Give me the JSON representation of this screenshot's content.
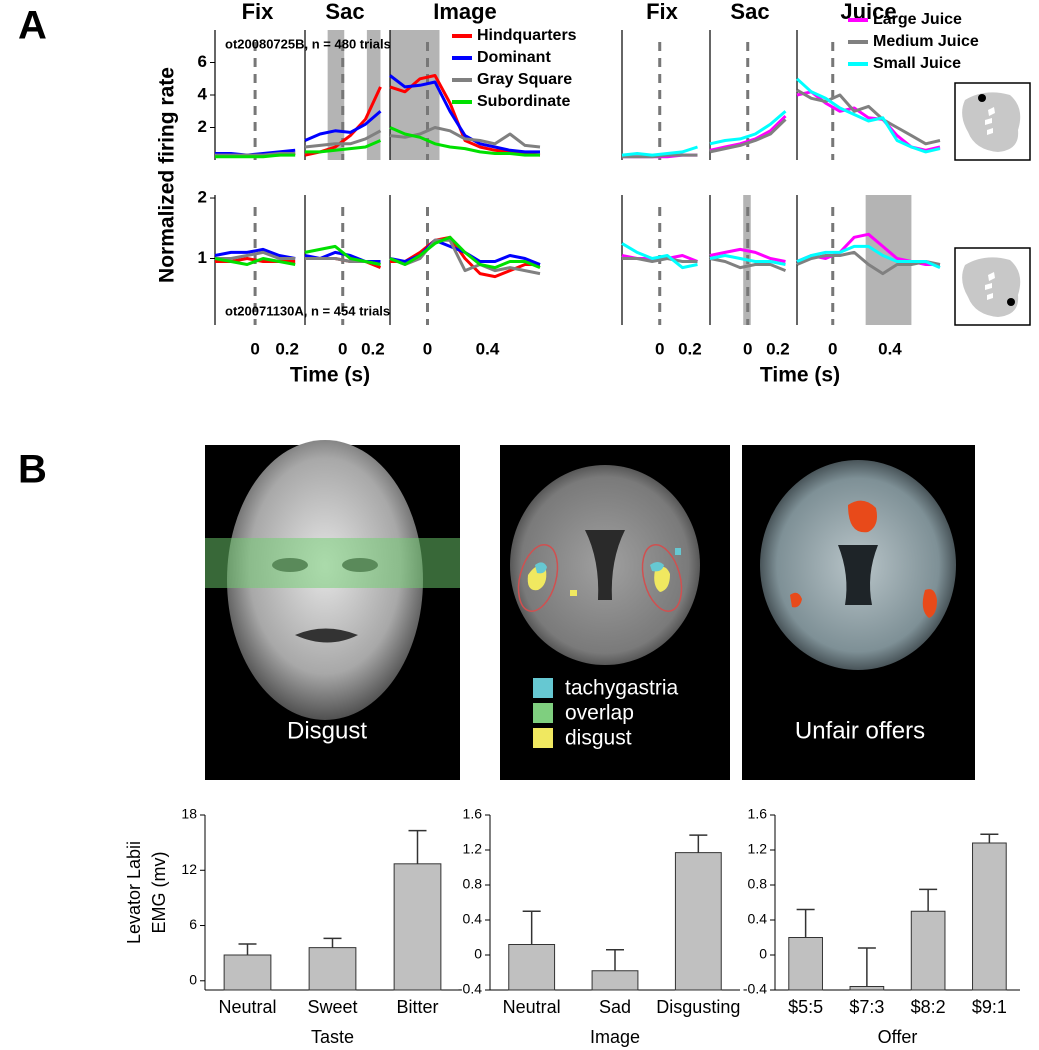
{
  "panel_labels": [
    "A",
    "B"
  ],
  "images": [
    {
      "caption": "Disgust"
    },
    {
      "legend": [
        {
          "label": "tachygastria",
          "color": "#66c8d2"
        },
        {
          "label": "overlap",
          "color": "#7fcf7f"
        },
        {
          "label": "disgust",
          "color": "#f0e860"
        }
      ]
    },
    {
      "caption": "Unfair offers"
    }
  ],
  "chart_data": [
    {
      "type": "line",
      "ylabel": "Normalized firing rate",
      "xlabel": "Time (s)",
      "segment_titles": [
        "Fix",
        "Sac",
        "Image"
      ],
      "series": [
        {
          "name": "Hindquarters",
          "color": "#ff0000"
        },
        {
          "name": "Dominant",
          "color": "#0000ff"
        },
        {
          "name": "Gray Square",
          "color": "#808080"
        },
        {
          "name": "Subordinate",
          "color": "#00e000"
        }
      ],
      "rows": [
        {
          "annotation": "ot20080725B, n = 480 trials",
          "ylim": [
            0,
            8
          ],
          "yticks": [
            2,
            4,
            6
          ],
          "segments": [
            {
              "xlim": [
                -0.25,
                0.28
              ],
              "event": 0,
              "x": [
                -0.25,
                -0.15,
                -0.05,
                0.05,
                0.15,
                0.25
              ],
              "values": [
                [
                  0.3,
                  0.3,
                  0.3,
                  0.3,
                  0.3,
                  0.4
                ],
                [
                  0.4,
                  0.4,
                  0.3,
                  0.4,
                  0.5,
                  0.6
                ],
                [
                  0.3,
                  0.3,
                  0.3,
                  0.3,
                  0.4,
                  0.4
                ],
                [
                  0.2,
                  0.2,
                  0.2,
                  0.2,
                  0.3,
                  0.3
                ]
              ]
            },
            {
              "xlim": [
                -0.25,
                0.28
              ],
              "event": 0,
              "shaded": [
                [
                  -0.1,
                  0.01
                ],
                [
                  0.16,
                  0.25
                ]
              ],
              "x": [
                -0.25,
                -0.15,
                -0.05,
                0.05,
                0.15,
                0.25
              ],
              "values": [
                [
                  0.3,
                  0.5,
                  0.8,
                  1.5,
                  2.5,
                  4.5
                ],
                [
                  1.2,
                  1.6,
                  1.8,
                  1.7,
                  2.2,
                  3
                ],
                [
                  0.8,
                  0.9,
                  1,
                  1,
                  1.3,
                  1.8
                ],
                [
                  0.5,
                  0.5,
                  0.6,
                  0.7,
                  0.8,
                  1.2
                ]
              ]
            },
            {
              "xlim": [
                -0.25,
                0.75
              ],
              "event": 0,
              "shaded": [
                [
                  -0.25,
                  0.08
                ]
              ],
              "x": [
                -0.25,
                -0.15,
                -0.05,
                0.05,
                0.15,
                0.25,
                0.35,
                0.45,
                0.55,
                0.65,
                0.75
              ],
              "values": [
                [
                  4.5,
                  4.2,
                  5,
                  5.2,
                  3.5,
                  1.2,
                  0.8,
                  0.6,
                  0.5,
                  0.4,
                  0.3
                ],
                [
                  5.2,
                  4.5,
                  4.6,
                  4.8,
                  3,
                  1.5,
                  1,
                  0.8,
                  0.6,
                  0.5,
                  0.5
                ],
                [
                  1.5,
                  1.4,
                  1.6,
                  2,
                  1.8,
                  1.3,
                  1.2,
                  1,
                  1.6,
                  0.9,
                  0.8
                ],
                [
                  2,
                  1.6,
                  1.4,
                  1,
                  0.8,
                  0.7,
                  0.5,
                  0.4,
                  0.4,
                  0.3,
                  0.3
                ]
              ]
            }
          ]
        },
        {
          "annotation": "ot20071130A, n = 454 trials",
          "ylim": [
            -0.1,
            2.05
          ],
          "yticks": [
            1,
            2
          ],
          "segments": [
            {
              "xlim": [
                -0.25,
                0.28
              ],
              "event": 0,
              "xticks": [
                0,
                0.2
              ],
              "x": [
                -0.25,
                -0.15,
                -0.05,
                0.05,
                0.15,
                0.25
              ],
              "values": [
                [
                  0.95,
                  0.95,
                  1,
                  0.95,
                  0.95,
                  0.95
                ],
                [
                  1.05,
                  1.1,
                  1.1,
                  1.15,
                  1.05,
                  1
                ],
                [
                  1,
                  1,
                  1.05,
                  1.1,
                  1,
                  1
                ],
                [
                  1,
                  0.95,
                  0.9,
                  1,
                  0.95,
                  0.9
                ]
              ]
            },
            {
              "xlim": [
                -0.25,
                0.28
              ],
              "event": 0,
              "xticks": [
                0,
                0.2
              ],
              "x": [
                -0.25,
                -0.15,
                -0.05,
                0.05,
                0.15,
                0.25
              ],
              "values": [
                [
                  1,
                  1,
                  1,
                  0.95,
                  0.95,
                  0.85
                ],
                [
                  1.05,
                  1,
                  1.1,
                  1.05,
                  0.95,
                  0.95
                ],
                [
                  1,
                  1,
                  1,
                  0.95,
                  0.95,
                  0.9
                ],
                [
                  1.1,
                  1.15,
                  1.2,
                  1,
                  0.95,
                  0.9
                ]
              ]
            },
            {
              "xlim": [
                -0.25,
                0.75
              ],
              "event": 0,
              "xticks": [
                0,
                0.4
              ],
              "x": [
                -0.25,
                -0.15,
                -0.05,
                0.05,
                0.15,
                0.25,
                0.35,
                0.45,
                0.55,
                0.65,
                0.75
              ],
              "values": [
                [
                  0.95,
                  0.95,
                  1.1,
                  1.3,
                  1.35,
                  1,
                  0.75,
                  0.7,
                  0.8,
                  0.9,
                  0.9
                ],
                [
                  1,
                  0.95,
                  1.05,
                  1.3,
                  1.2,
                  1.1,
                  0.95,
                  0.95,
                  1.05,
                  1,
                  0.9
                ],
                [
                  1,
                  0.9,
                  1,
                  1.3,
                  1.3,
                  0.8,
                  0.9,
                  0.8,
                  0.85,
                  0.8,
                  0.75
                ],
                [
                  1,
                  0.9,
                  1.05,
                  1.25,
                  1.35,
                  1.1,
                  0.9,
                  0.85,
                  0.95,
                  0.95,
                  0.85
                ]
              ]
            }
          ]
        }
      ]
    },
    {
      "type": "line",
      "xlabel": "Time (s)",
      "segment_titles": [
        "Fix",
        "Sac",
        "Juice"
      ],
      "series": [
        {
          "name": "Large Juice",
          "color": "#ff00ff"
        },
        {
          "name": "Medium Juice",
          "color": "#808080"
        },
        {
          "name": "Small Juice",
          "color": "#00ffff"
        }
      ],
      "rows": [
        {
          "ylim": [
            0,
            8
          ],
          "segments": [
            {
              "xlim": [
                -0.25,
                0.28
              ],
              "event": 0,
              "x": [
                -0.25,
                -0.15,
                -0.05,
                0.05,
                0.15,
                0.25
              ],
              "values": [
                [
                  0.2,
                  0.2,
                  0.2,
                  0.2,
                  0.3,
                  0.3
                ],
                [
                  0.2,
                  0.2,
                  0.2,
                  0.3,
                  0.3,
                  0.3
                ],
                [
                  0.3,
                  0.4,
                  0.3,
                  0.4,
                  0.5,
                  0.8
                ]
              ]
            },
            {
              "xlim": [
                -0.25,
                0.28
              ],
              "event": 0,
              "x": [
                -0.25,
                -0.15,
                -0.05,
                0.05,
                0.15,
                0.25
              ],
              "values": [
                [
                  0.6,
                  0.8,
                  1,
                  1.3,
                  1.8,
                  2.7
                ],
                [
                  0.5,
                  0.7,
                  0.9,
                  1.2,
                  1.6,
                  2.5
                ],
                [
                  1,
                  1.2,
                  1.3,
                  1.6,
                  2.2,
                  3
                ]
              ]
            },
            {
              "xlim": [
                -0.25,
                0.75
              ],
              "event": 0,
              "x": [
                -0.25,
                -0.15,
                -0.05,
                0.05,
                0.15,
                0.25,
                0.35,
                0.45,
                0.55,
                0.65,
                0.75
              ],
              "values": [
                [
                  4,
                  4.2,
                  3.5,
                  3,
                  3.2,
                  2.6,
                  2.5,
                  1.5,
                  0.8,
                  0.6,
                  0.8
                ],
                [
                  4.3,
                  3.8,
                  3.6,
                  4,
                  3,
                  3.3,
                  2.5,
                  2,
                  1.5,
                  1,
                  1.2
                ],
                [
                  5,
                  4.2,
                  3.8,
                  3.2,
                  2.8,
                  2.4,
                  2.6,
                  1.2,
                  0.8,
                  0.5,
                  0.7
                ]
              ]
            }
          ]
        },
        {
          "ylim": [
            -0.1,
            2.05
          ],
          "segments": [
            {
              "xlim": [
                -0.25,
                0.28
              ],
              "event": 0,
              "xticks": [
                0,
                0.2
              ],
              "x": [
                -0.25,
                -0.15,
                -0.05,
                0.05,
                0.15,
                0.25
              ],
              "values": [
                [
                  1.05,
                  1,
                  1,
                  1,
                  1.05,
                  0.95
                ],
                [
                  1,
                  1,
                  0.95,
                  1,
                  0.95,
                  0.95
                ],
                [
                  1.25,
                  1.1,
                  1,
                  1.05,
                  0.85,
                  0.9
                ]
              ]
            },
            {
              "xlim": [
                -0.25,
                0.28
              ],
              "event": 0,
              "xticks": [
                0,
                0.2
              ],
              "shaded": [
                [
                  -0.03,
                  0.02
                ]
              ],
              "x": [
                -0.25,
                -0.15,
                -0.05,
                0.05,
                0.15,
                0.25
              ],
              "values": [
                [
                  1.05,
                  1.1,
                  1.15,
                  1.1,
                  1,
                  0.95
                ],
                [
                  1,
                  0.95,
                  0.85,
                  0.9,
                  0.9,
                  0.8
                ],
                [
                  1,
                  1.05,
                  1,
                  0.95,
                  0.95,
                  0.9
                ]
              ]
            },
            {
              "xlim": [
                -0.25,
                0.75
              ],
              "event": 0,
              "xticks": [
                0,
                0.4
              ],
              "shaded": [
                [
                  0.23,
                  0.55
                ]
              ],
              "x": [
                -0.25,
                -0.15,
                -0.05,
                0.05,
                0.15,
                0.25,
                0.35,
                0.45,
                0.55,
                0.65,
                0.75
              ],
              "values": [
                [
                  0.95,
                  1.05,
                  1,
                  1.1,
                  1.35,
                  1.4,
                  1.2,
                  1,
                  0.95,
                  0.9,
                  0.9
                ],
                [
                  0.9,
                  1,
                  1.05,
                  1.05,
                  1.1,
                  0.9,
                  0.75,
                  0.9,
                  0.9,
                  0.95,
                  0.9
                ],
                [
                  0.95,
                  1.05,
                  1.1,
                  1.1,
                  1.2,
                  1.2,
                  1.05,
                  0.95,
                  0.95,
                  0.95,
                  0.85
                ]
              ]
            }
          ]
        }
      ]
    },
    {
      "type": "bar",
      "ylabel": [
        "Levator Labii",
        "EMG (mv)"
      ],
      "xlabel": "Taste",
      "color": "#c0c0c0",
      "categories": [
        "Neutral",
        "Sweet",
        "Bitter"
      ],
      "values": [
        2.8,
        3.6,
        12.7
      ],
      "errors": [
        1.2,
        1,
        3.6
      ],
      "ylim": [
        -1,
        18
      ],
      "yticks": [
        0,
        6,
        12,
        18
      ]
    },
    {
      "type": "bar",
      "xlabel": "Image",
      "color": "#c0c0c0",
      "categories": [
        "Neutral",
        "Sad",
        "Disgusting"
      ],
      "values": [
        0.12,
        -0.18,
        1.17
      ],
      "errors": [
        0.38,
        0.24,
        0.2
      ],
      "ylim": [
        -0.4,
        1.6
      ],
      "yticks": [
        -0.4,
        0,
        0.4,
        0.8,
        1.2,
        1.6
      ]
    },
    {
      "type": "bar",
      "xlabel": "Offer",
      "color": "#c0c0c0",
      "categories": [
        "$5:5",
        "$7:3",
        "$8:2",
        "$9:1"
      ],
      "values": [
        0.2,
        -0.36,
        0.5,
        1.28
      ],
      "errors": [
        0.32,
        0.44,
        0.25,
        0.1
      ],
      "ylim": [
        -0.4,
        1.6
      ],
      "yticks": [
        -0.4,
        0,
        0.4,
        0.8,
        1.2,
        1.6
      ]
    }
  ]
}
